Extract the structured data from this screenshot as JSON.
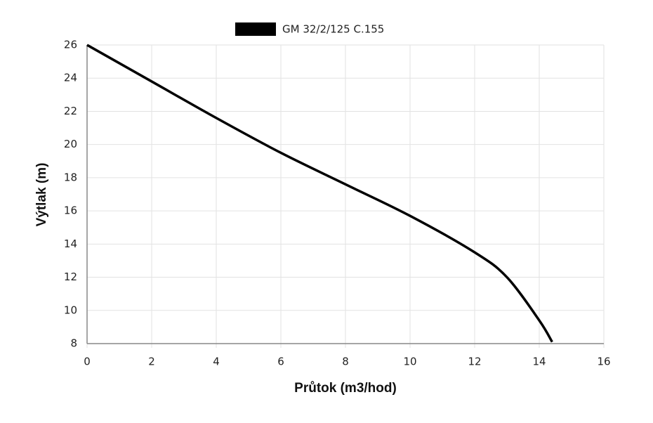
{
  "chart_data": {
    "type": "line",
    "x_label": "Průtok (m3/hod)",
    "y_label": "Výtlak (m)",
    "x": [
      0,
      2,
      4,
      6,
      8,
      10,
      12,
      13,
      14,
      14.4
    ],
    "series": [
      {
        "name": "GM 32/2/125 C.155",
        "color": "#000000",
        "values": [
          26,
          23.8,
          21.6,
          19.5,
          17.6,
          15.7,
          13.5,
          12.0,
          9.4,
          8.1
        ]
      }
    ],
    "xlim": [
      0,
      16
    ],
    "xticks": [
      0,
      2,
      4,
      6,
      8,
      10,
      12,
      14,
      16
    ],
    "ylim": [
      8,
      26
    ],
    "yticks": [
      8,
      10,
      12,
      14,
      16,
      18,
      20,
      22,
      24,
      26
    ],
    "grid": true,
    "legend": "top"
  }
}
